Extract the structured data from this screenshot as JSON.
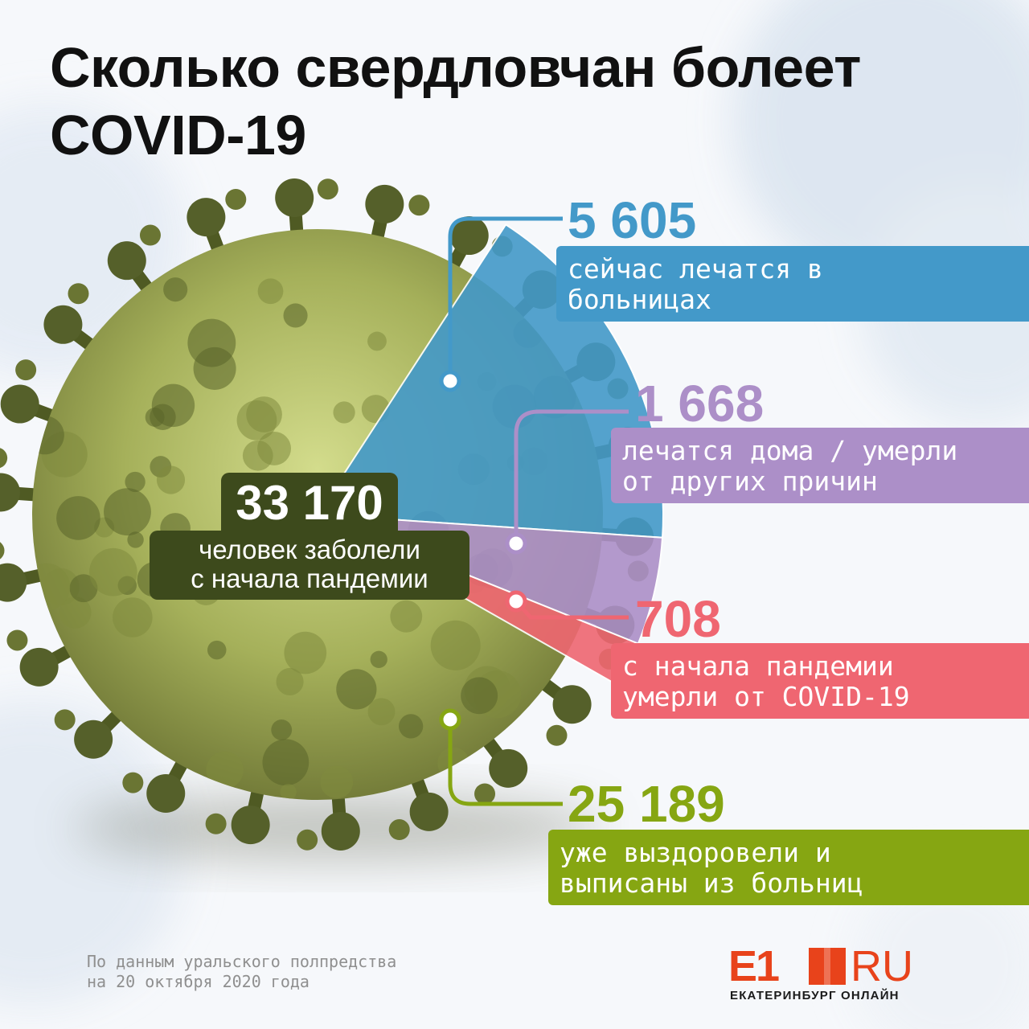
{
  "title": [
    "Сколько свердловчан болеет",
    "COVID-19"
  ],
  "total": {
    "value": "33 170",
    "label": [
      "человек заболели",
      "с начала пандемии"
    ],
    "color": "#3d4a1c"
  },
  "chart_data": {
    "type": "pie",
    "title": "Сколько свердловчан болеет COVID-19",
    "total": 33170,
    "series": [
      {
        "value": 5605,
        "value_text": "5 605",
        "label": [
          "сейчас лечатся в",
          "больницах"
        ],
        "color": "#4399c9"
      },
      {
        "value": 1668,
        "value_text": "1 668",
        "label": [
          "лечатся дома / умерли",
          "от других причин"
        ],
        "color": "#ac8fc8"
      },
      {
        "value": 708,
        "value_text": "708",
        "label": [
          "с начала пандемии",
          "умерли от COVID-19"
        ],
        "color": "#ef6671"
      },
      {
        "value": 25189,
        "value_text": "25 189",
        "label": [
          "уже выздоровели и",
          "выписаны из больниц"
        ],
        "color": "#86a612"
      }
    ]
  },
  "source": [
    "По данным уральского полпредства",
    "на 20 октября 2020 года"
  ],
  "logo": {
    "main": "E1",
    "suffix": "RU",
    "tagline": "ЕКАТЕРИНБУРГ ОНЛАЙН",
    "color": "#e8431b"
  }
}
